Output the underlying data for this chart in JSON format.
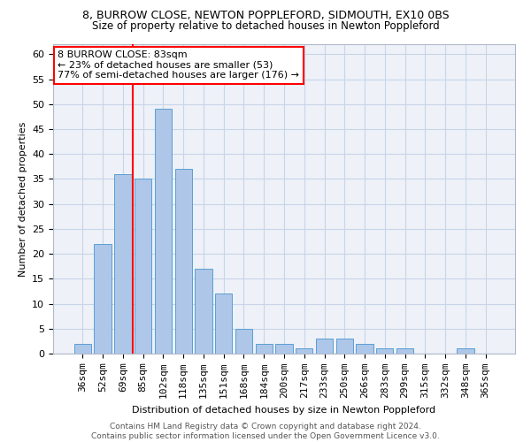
{
  "title_line1": "8, BURROW CLOSE, NEWTON POPPLEFORD, SIDMOUTH, EX10 0BS",
  "title_line2": "Size of property relative to detached houses in Newton Poppleford",
  "xlabel": "Distribution of detached houses by size in Newton Poppleford",
  "ylabel": "Number of detached properties",
  "footer_line1": "Contains HM Land Registry data © Crown copyright and database right 2024.",
  "footer_line2": "Contains public sector information licensed under the Open Government Licence v3.0.",
  "categories": [
    "36sqm",
    "52sqm",
    "69sqm",
    "85sqm",
    "102sqm",
    "118sqm",
    "135sqm",
    "151sqm",
    "168sqm",
    "184sqm",
    "200sqm",
    "217sqm",
    "233sqm",
    "250sqm",
    "266sqm",
    "283sqm",
    "299sqm",
    "315sqm",
    "332sqm",
    "348sqm",
    "365sqm"
  ],
  "values": [
    2,
    22,
    36,
    35,
    49,
    37,
    17,
    12,
    5,
    2,
    2,
    1,
    3,
    3,
    2,
    1,
    1,
    0,
    0,
    1,
    0
  ],
  "bar_color": "#aec6e8",
  "bar_edgecolor": "#5a9fd4",
  "vline_x": 2.5,
  "vline_color": "red",
  "annotation_text": "8 BURROW CLOSE: 83sqm\n← 23% of detached houses are smaller (53)\n77% of semi-detached houses are larger (176) →",
  "annotation_box_edgecolor": "red",
  "annotation_box_facecolor": "white",
  "ylim": [
    0,
    62
  ],
  "yticks": [
    0,
    5,
    10,
    15,
    20,
    25,
    30,
    35,
    40,
    45,
    50,
    55,
    60
  ],
  "grid_color": "#c8d4e8",
  "bg_color": "#eef2f8",
  "title1_fontsize": 9,
  "title2_fontsize": 8.5,
  "xlabel_fontsize": 8,
  "ylabel_fontsize": 8,
  "tick_fontsize": 8,
  "annot_fontsize": 8,
  "footer_fontsize": 6.5
}
